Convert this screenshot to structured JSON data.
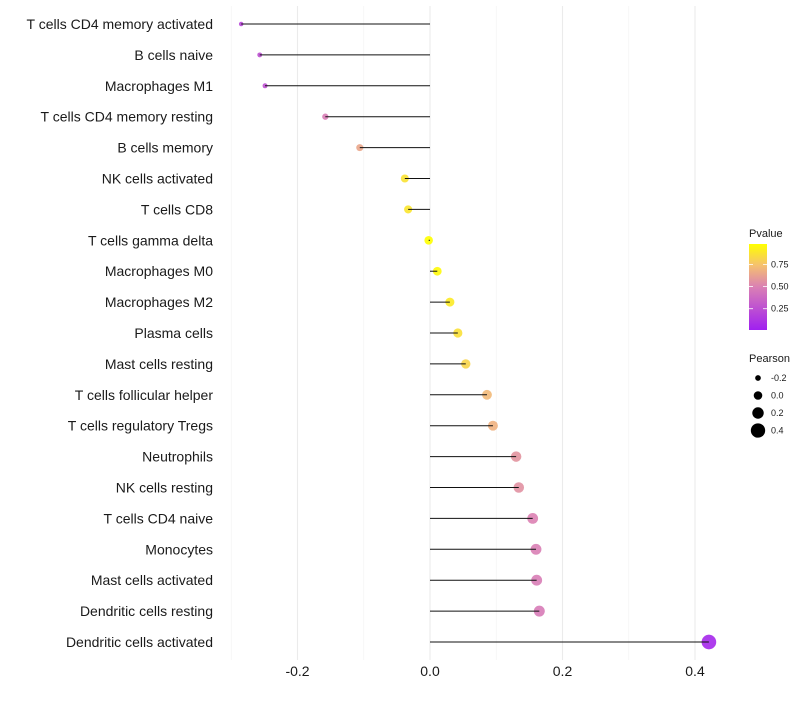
{
  "chart_data": {
    "type": "lollipop",
    "xlabel": "",
    "ylabel": "",
    "xlim": [
      -0.32,
      0.44
    ],
    "x_ticks": [
      -0.2,
      0.0,
      0.2,
      0.4
    ],
    "x_tick_labels": [
      "-0.2",
      "0.0",
      "0.2",
      "0.4"
    ],
    "grid": true,
    "categories": [
      "T cells CD4 memory activated",
      "B cells naive",
      "Macrophages M1",
      "T cells CD4 memory resting",
      "B cells memory",
      "NK cells activated",
      "T cells CD8",
      "T cells gamma delta",
      "Macrophages M0",
      "Macrophages M2",
      "Plasma cells",
      "Mast cells resting",
      "T cells follicular helper",
      "T cells regulatory  Tregs",
      "Neutrophils",
      "NK cells resting",
      "T cells CD4 naive",
      "Monocytes",
      "Mast cells activated",
      "Dendritic cells resting",
      "Dendritic cells activated"
    ],
    "pearson": [
      -0.285,
      -0.257,
      -0.249,
      -0.158,
      -0.106,
      -0.038,
      -0.033,
      -0.002,
      0.011,
      0.03,
      0.042,
      0.054,
      0.086,
      0.095,
      0.13,
      0.134,
      0.155,
      0.16,
      0.161,
      0.165,
      0.421
    ],
    "pvalue": [
      0.2,
      0.25,
      0.26,
      0.48,
      0.64,
      0.87,
      0.88,
      0.99,
      0.96,
      0.9,
      0.86,
      0.82,
      0.71,
      0.68,
      0.57,
      0.56,
      0.5,
      0.49,
      0.48,
      0.47,
      0.05
    ],
    "legend_color": {
      "title": "Pvalue",
      "ticks": [
        0.25,
        0.5,
        0.75
      ],
      "tick_labels": [
        "0.25",
        "0.50",
        "0.75"
      ],
      "range": [
        0.01,
        0.98
      ],
      "low_color": "#A020F0",
      "high_color": "#FFFF00",
      "placement": "right"
    },
    "legend_size": {
      "title": "Pearson",
      "values": [
        -0.2,
        0.0,
        0.2,
        0.4
      ],
      "labels": [
        "-0.2",
        "0.0",
        "0.2",
        "0.4"
      ],
      "placement": "right"
    }
  }
}
